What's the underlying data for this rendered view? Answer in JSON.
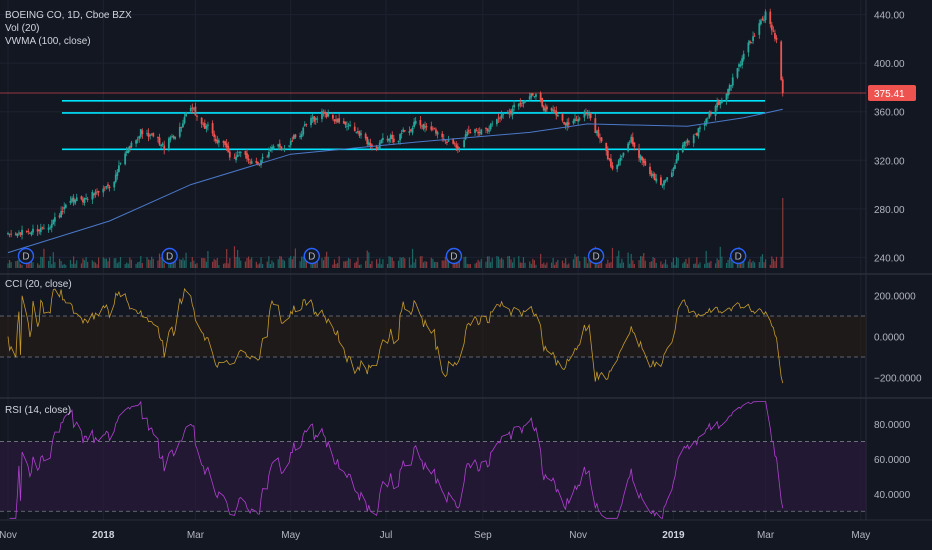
{
  "header": {
    "symbol_line": "BOEING CO, 1D, Cboe BZX",
    "volume_label": "Vol (20)",
    "vwma_label": "VWMA (100, close)",
    "cci_label": "CCI (20, close)",
    "rsi_label": "RSI (14, close)"
  },
  "colors": {
    "background": "#131722",
    "up": "#26a69a",
    "down": "#ef5350",
    "level_line": "#00e5ff",
    "vwma": "#4a78c8",
    "cci": "#c49a2c",
    "rsi": "#b040d0",
    "last_price_tag": "#ef5350",
    "dividend_badge": "#2962ff"
  },
  "chart_data": [
    {
      "type": "candlestick",
      "panel": "price",
      "y_ticks": [
        "440.00",
        "400.00",
        "360.00",
        "320.00",
        "280.00",
        "240.00"
      ],
      "ylim": [
        228,
        452
      ],
      "last_price": "375.41",
      "horizontal_levels": [
        369,
        359,
        329
      ],
      "x_labels": [
        "Nov",
        "2018",
        "Mar",
        "May",
        "Jul",
        "Sep",
        "Nov",
        "2019",
        "Mar",
        "May"
      ],
      "x_labels_bold": [
        "2018",
        "2019"
      ],
      "dividend_marker": "D",
      "dividend_count": 6,
      "price_anchors": [
        [
          "2017-11-01",
          257
        ],
        [
          "2017-11-20",
          263
        ],
        [
          "2017-12-15",
          285
        ],
        [
          "2018-01-05",
          300
        ],
        [
          "2018-01-25",
          345
        ],
        [
          "2018-02-09",
          330
        ],
        [
          "2018-02-26",
          360
        ],
        [
          "2018-03-23",
          325
        ],
        [
          "2018-04-10",
          320
        ],
        [
          "2018-05-01",
          335
        ],
        [
          "2018-05-22",
          360
        ],
        [
          "2018-06-25",
          330
        ],
        [
          "2018-07-20",
          350
        ],
        [
          "2018-08-15",
          335
        ],
        [
          "2018-09-05",
          350
        ],
        [
          "2018-10-01",
          375
        ],
        [
          "2018-10-10",
          365
        ],
        [
          "2018-10-25",
          350
        ],
        [
          "2018-11-07",
          360
        ],
        [
          "2018-11-22",
          315
        ],
        [
          "2018-12-05",
          335
        ],
        [
          "2018-12-24",
          298
        ],
        [
          "2019-01-10",
          335
        ],
        [
          "2019-01-31",
          368
        ],
        [
          "2019-02-15",
          405
        ],
        [
          "2019-03-01",
          441
        ],
        [
          "2019-03-08",
          420
        ],
        [
          "2019-03-11",
          390
        ],
        [
          "2019-03-12",
          375.41
        ]
      ],
      "vwma_anchors": [
        [
          "2017-11-01",
          244
        ],
        [
          "2018-01-05",
          270
        ],
        [
          "2018-02-26",
          300
        ],
        [
          "2018-05-01",
          325
        ],
        [
          "2018-07-20",
          335
        ],
        [
          "2018-10-01",
          343
        ],
        [
          "2018-11-07",
          350
        ],
        [
          "2019-01-10",
          348
        ],
        [
          "2019-02-15",
          355
        ],
        [
          "2019-03-12",
          362
        ]
      ]
    },
    {
      "type": "line",
      "panel": "cci",
      "name": "CCI (20, close)",
      "y_ticks": [
        "200.0000",
        "0.0000",
        "−200.0000"
      ],
      "ylim": [
        -300,
        300
      ],
      "bands": [
        100,
        -100
      ]
    },
    {
      "type": "line",
      "panel": "rsi",
      "name": "RSI (14, close)",
      "y_ticks": [
        "80.0000",
        "60.0000",
        "40.0000"
      ],
      "ylim": [
        25,
        95
      ],
      "bands": [
        70,
        30
      ]
    }
  ]
}
